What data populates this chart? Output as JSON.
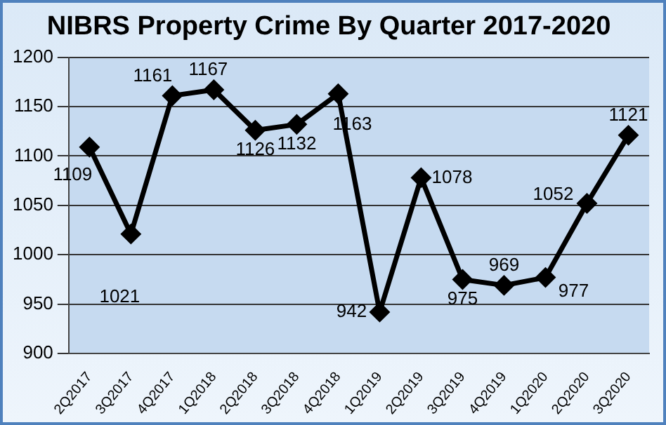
{
  "chart_data": {
    "type": "line",
    "title": "NIBRS Property Crime By Quarter 2017-2020",
    "categories": [
      "2Q2017",
      "3Q2017",
      "4Q2017",
      "1Q2018",
      "2Q2018",
      "3Q2018",
      "4Q2018",
      "1Q2019",
      "2Q2019",
      "3Q2019",
      "4Q2019",
      "1Q2020",
      "2Q2020",
      "3Q2020"
    ],
    "series": [
      {
        "color": "#000000",
        "values": [
          1109,
          1021,
          1161,
          1167,
          1126,
          1132,
          1163,
          942,
          1078,
          975,
          969,
          977,
          1052,
          1121
        ]
      }
    ],
    "ylim": [
      900,
      1200
    ],
    "yticks": [
      900,
      950,
      1000,
      1050,
      1100,
      1150,
      1200
    ],
    "grid": "y",
    "legend": false,
    "marker": "diamond",
    "line_style": "solid",
    "data_labels": true
  }
}
